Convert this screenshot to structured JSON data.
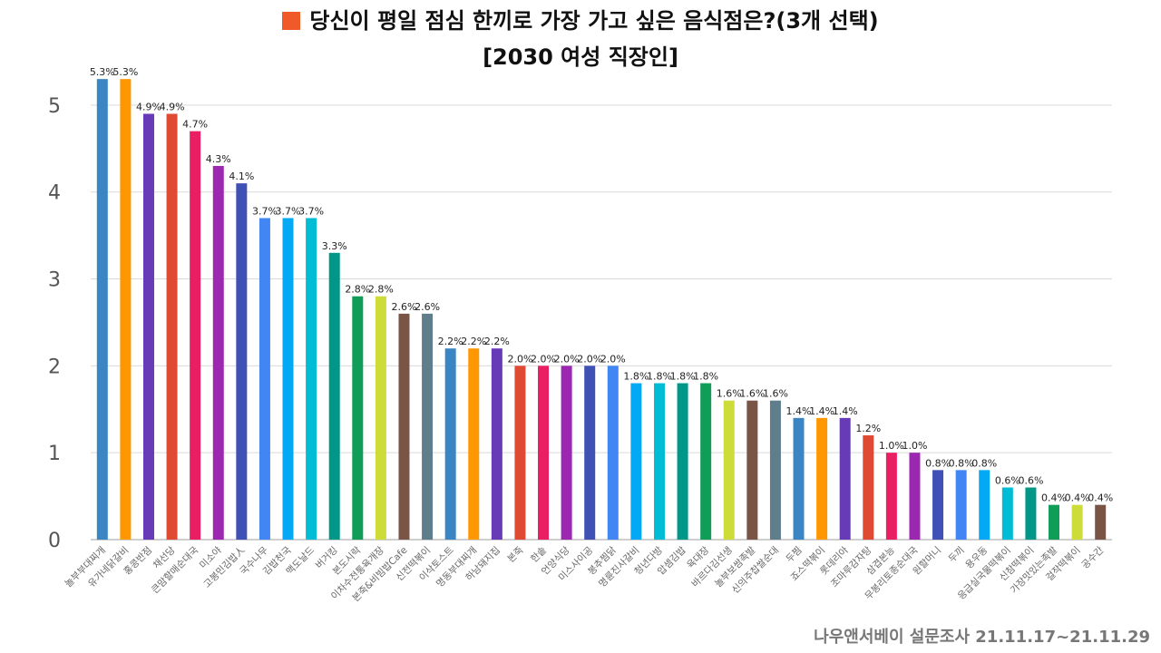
{
  "title": "당신이 평일 점심 한끼로 가장 가고 싶은 음식점은?(3개 선택)",
  "subtitle": "[2030 여성 직장인]",
  "source": "나우앤서베이 설문조사 21.11.17~21.11.29",
  "legend_color": "#f05a28",
  "chart_data": {
    "type": "bar",
    "title": "당신이 평일 점심 한끼로 가장 가고 싶은 음식점은?(3개 선택)",
    "subtitle": "[2030 여성 직장인]",
    "ylim": [
      0,
      5.5
    ],
    "yticks": [
      0,
      1,
      2,
      3,
      4,
      5
    ],
    "grid": true,
    "categories": [
      "놀부부대찌개",
      "유가네닭갈비",
      "홍콩반점",
      "채선당",
      "큰맘할매순대국",
      "미소야",
      "고봉민김밥人",
      "국수나무",
      "김밥천국",
      "맥도날드",
      "버거킹",
      "본도시락",
      "이차수전통육개장",
      "본죽&비빔밥Cafe",
      "신전떡볶이",
      "이삭토스트",
      "명동부대찌개",
      "하남돼지집",
      "본죽",
      "한솥",
      "언양식당",
      "미스사이공",
      "봉추찜닭",
      "명륜진사갈비",
      "청년다방",
      "압셈김밥",
      "육대장",
      "바르다김선생",
      "놀부보쌈족발",
      "신의주찹쌀순대",
      "두찜",
      "죠스떡볶이",
      "롯데리아",
      "조마루감자탕",
      "삼겹본능",
      "무봉리토종순대국",
      "원할머니",
      "두끼",
      "용우동",
      "응급실국물떡볶이",
      "신참떡볶이",
      "가장맛있는족발",
      "걸작떡볶이",
      "공수간"
    ],
    "values": [
      5.3,
      5.3,
      4.9,
      4.9,
      4.7,
      4.3,
      4.1,
      3.7,
      3.7,
      3.7,
      3.3,
      2.8,
      2.8,
      2.6,
      2.6,
      2.2,
      2.2,
      2.2,
      2.0,
      2.0,
      2.0,
      2.0,
      2.0,
      1.8,
      1.8,
      1.8,
      1.8,
      1.6,
      1.6,
      1.6,
      1.4,
      1.4,
      1.4,
      1.2,
      1.0,
      1.0,
      0.8,
      0.8,
      0.8,
      0.6,
      0.6,
      0.4,
      0.4,
      0.4
    ],
    "value_labels": [
      "5.3%",
      "5.3%",
      "4.9%",
      "4.9%",
      "4.7%",
      "4.3%",
      "4.1%",
      "3.7%",
      "3.7%",
      "3.7%",
      "3.3%",
      "2.8%",
      "2.8%",
      "2.6%",
      "2.6%",
      "2.2%",
      "2.2%",
      "2.2%",
      "2.0%",
      "2.0%",
      "2.0%",
      "2.0%",
      "2.0%",
      "1.8%",
      "1.8%",
      "1.8%",
      "1.8%",
      "1.6%",
      "1.6%",
      "1.6%",
      "1.4%",
      "1.4%",
      "1.4%",
      "1.2%",
      "1.0%",
      "1.0%",
      "0.8%",
      "0.8%",
      "0.8%",
      "0.6%",
      "0.6%",
      "0.4%",
      "0.4%",
      "0.4%"
    ],
    "colors": [
      "#3a86c4",
      "#ff9800",
      "#673ab7",
      "#e04a34",
      "#e91e63",
      "#9c27b0",
      "#3f51b5",
      "#4286f4",
      "#03a9f4",
      "#00bcd4",
      "#009688",
      "#0f9d58",
      "#cddc39",
      "#795548",
      "#607d8b",
      "#3a86c4",
      "#ff9800",
      "#673ab7",
      "#e04a34",
      "#e91e63",
      "#9c27b0",
      "#3f51b5",
      "#4286f4",
      "#03a9f4",
      "#00bcd4",
      "#009688",
      "#0f9d58",
      "#cddc39",
      "#795548",
      "#607d8b",
      "#3a86c4",
      "#ff9800",
      "#673ab7",
      "#e04a34",
      "#e91e63",
      "#9c27b0",
      "#3f51b5",
      "#4286f4",
      "#03a9f4",
      "#00bcd4",
      "#009688",
      "#0f9d58",
      "#cddc39",
      "#795548"
    ]
  }
}
